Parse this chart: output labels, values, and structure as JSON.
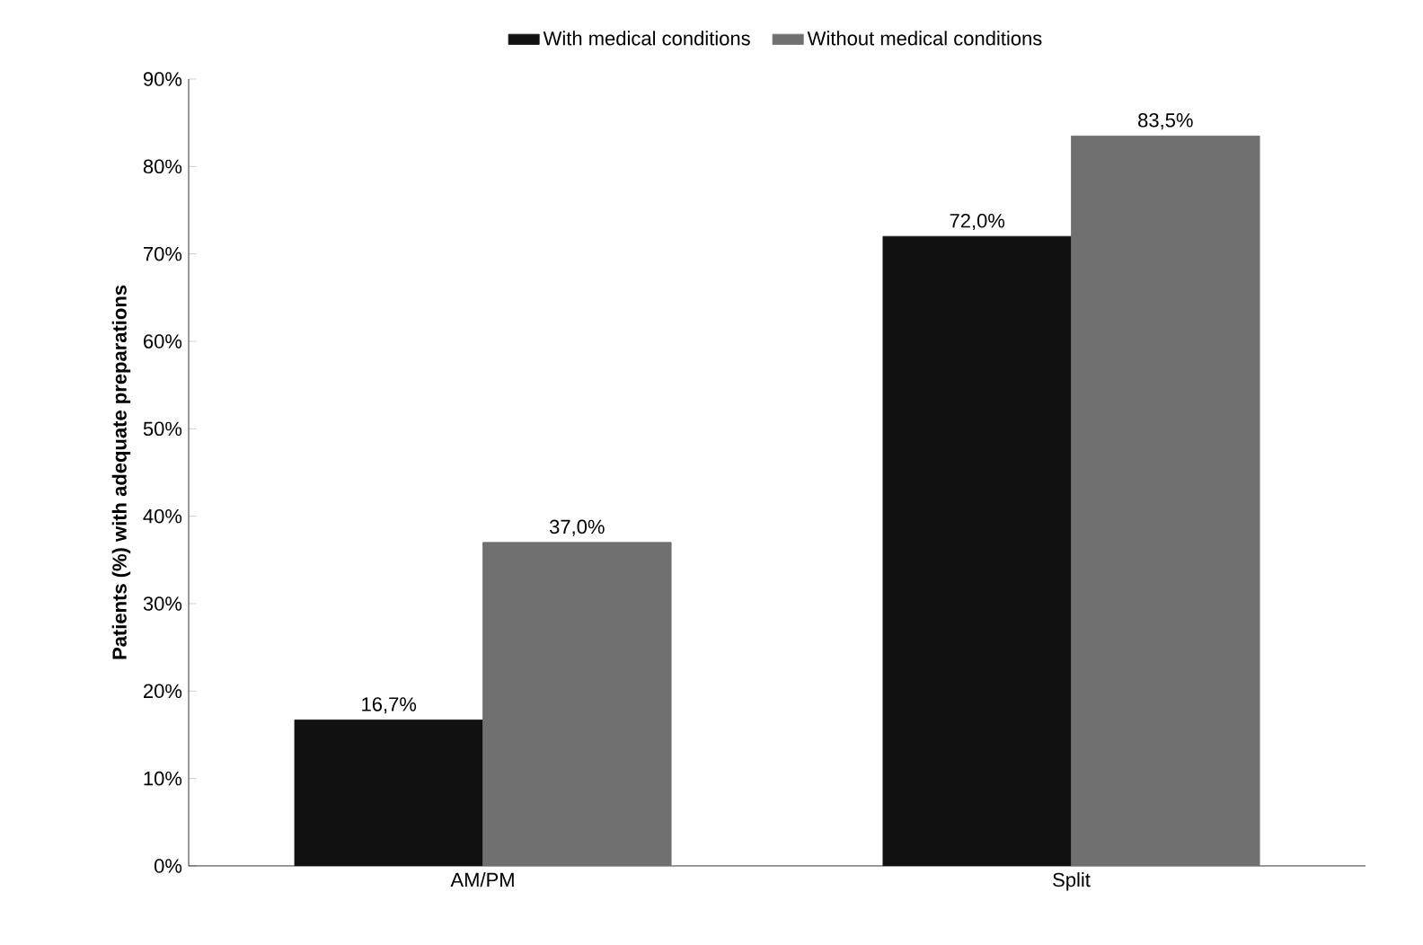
{
  "chart_data": {
    "type": "bar",
    "ylabel": "Patients (%) with adequate preparations",
    "categories": [
      "AM/PM",
      "Split"
    ],
    "series": [
      {
        "name": "With medical conditions",
        "color": "#111111",
        "values": [
          16.7,
          72.0
        ],
        "value_labels": [
          "16,7%",
          "72,0%"
        ]
      },
      {
        "name": "Without medical conditions",
        "color": "#707070",
        "values": [
          37.0,
          83.5
        ],
        "value_labels": [
          "37,0%",
          "83,5%"
        ]
      }
    ],
    "ylim": [
      0,
      90
    ],
    "yticks": [
      {
        "value": 0,
        "label": "0%"
      },
      {
        "value": 10,
        "label": "10%"
      },
      {
        "value": 20,
        "label": "20%"
      },
      {
        "value": 30,
        "label": "30%"
      },
      {
        "value": 40,
        "label": "40%"
      },
      {
        "value": 50,
        "label": "50%"
      },
      {
        "value": 60,
        "label": "60%"
      },
      {
        "value": 70,
        "label": "70%"
      },
      {
        "value": 80,
        "label": "80%"
      },
      {
        "value": 90,
        "label": "90%"
      }
    ],
    "grid": false,
    "legend": "top"
  }
}
